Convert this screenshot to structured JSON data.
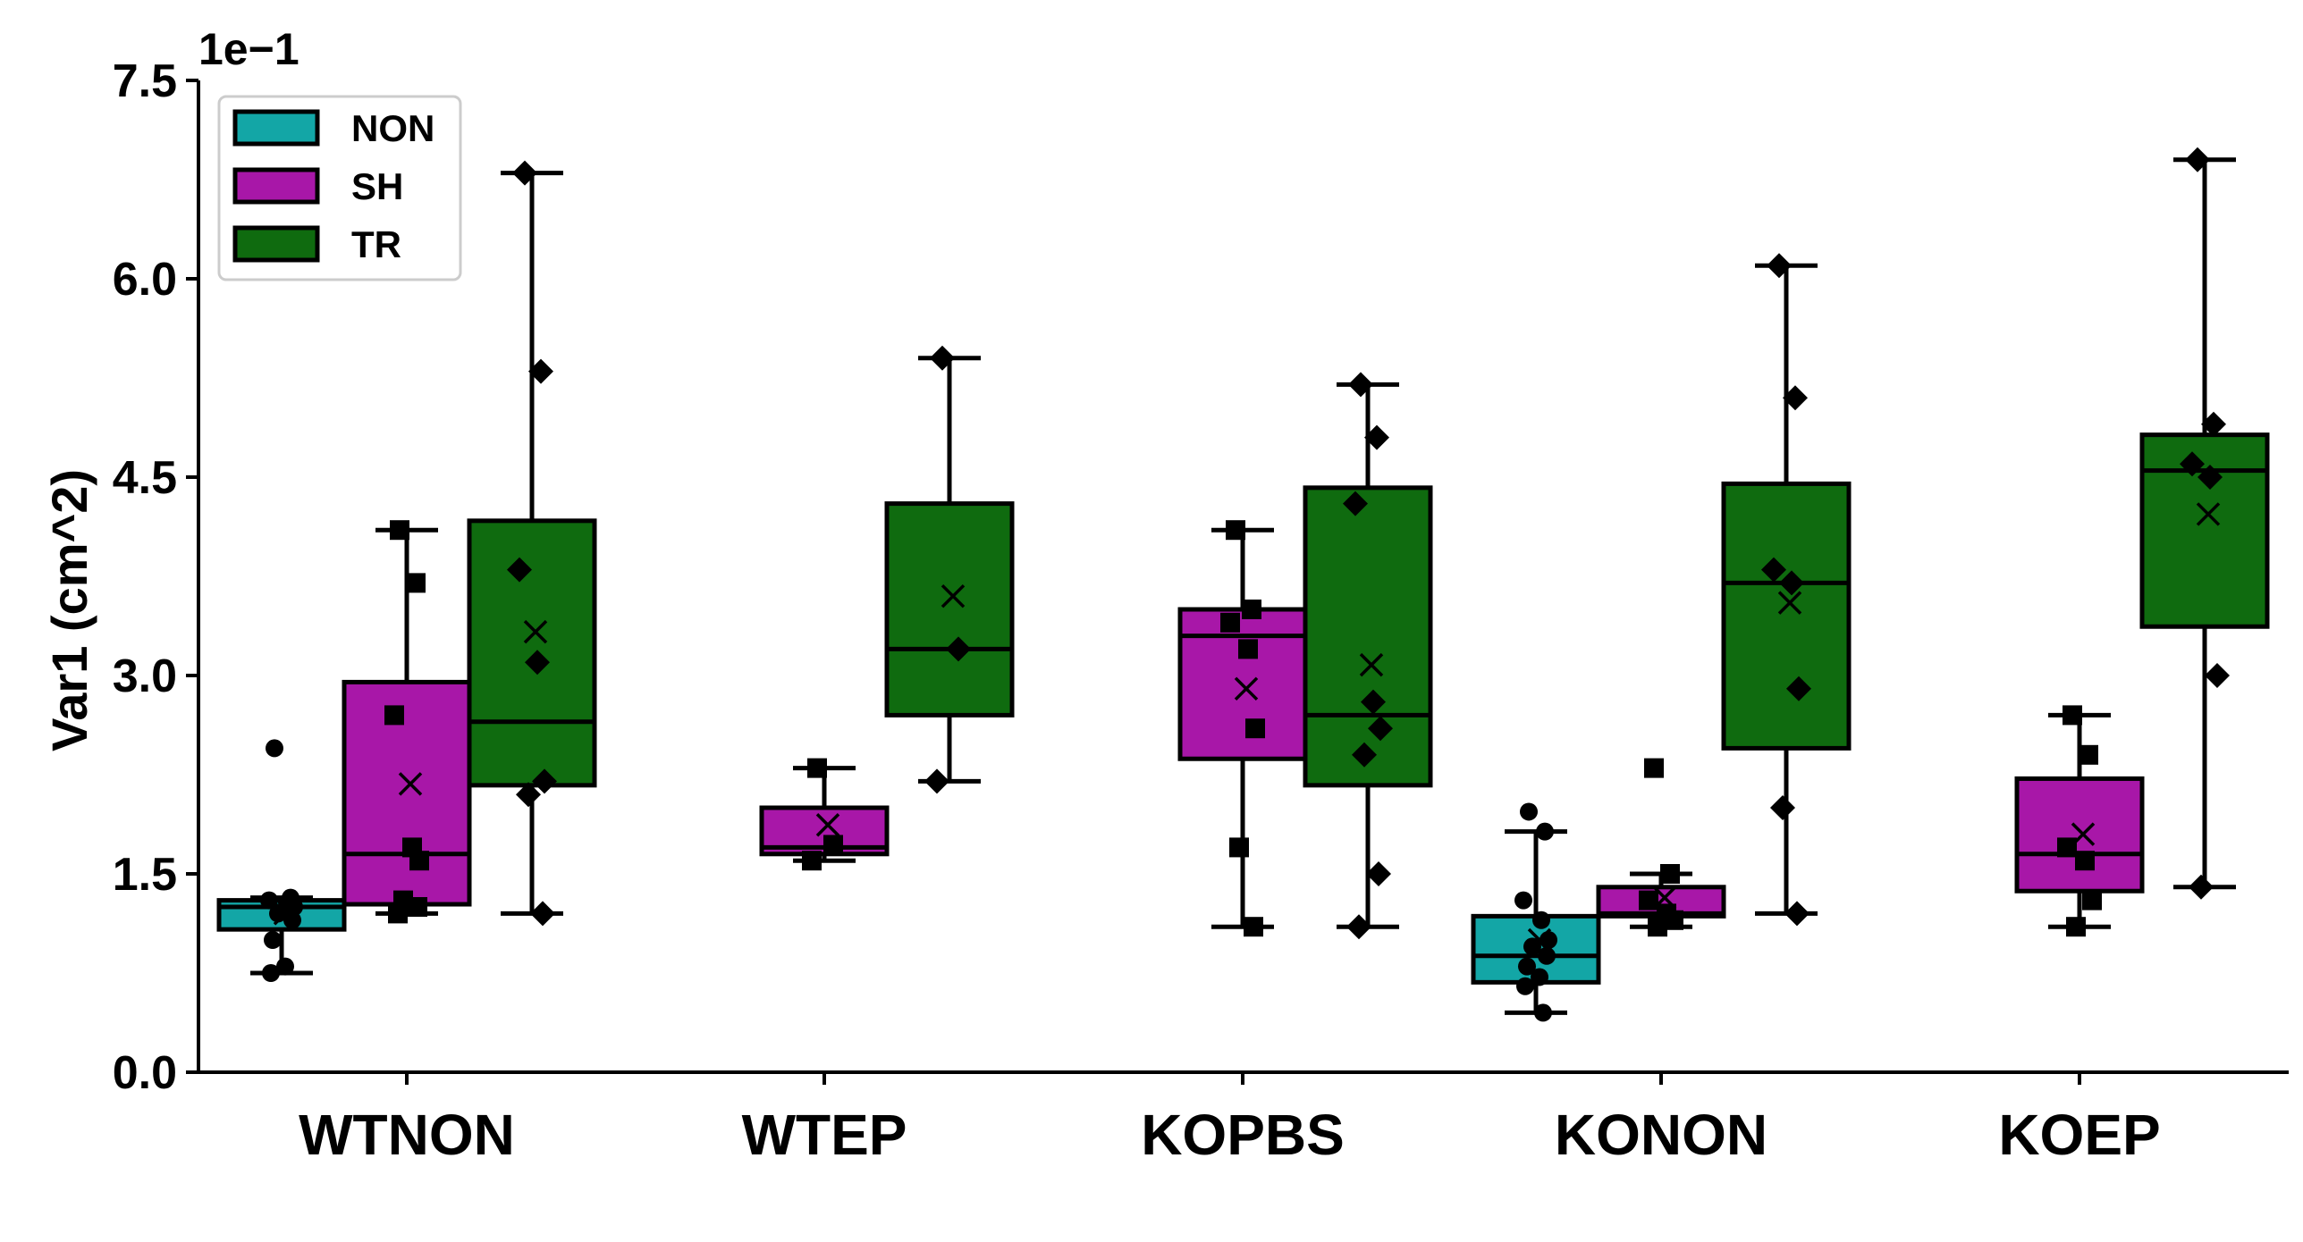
{
  "chart_data": {
    "type": "box",
    "title": "",
    "xlabel": "",
    "ylabel": "Var1 (cm^2)",
    "y_scale_label": "1e−1",
    "ylim": [
      0,
      7.5
    ],
    "yticks": [
      0.0,
      1.5,
      3.0,
      4.5,
      6.0,
      7.5
    ],
    "ytick_labels": [
      "0.0",
      "1.5",
      "3.0",
      "4.5",
      "6.0",
      "7.5"
    ],
    "categories": [
      "WTNON",
      "WTEP",
      "KOPBS",
      "KONON",
      "KOEP"
    ],
    "legend_position": "top-left",
    "grid": false,
    "series": [
      {
        "name": "NON",
        "color": "#13a6a6",
        "marker": "circle",
        "boxes": [
          {
            "category": "WTNON",
            "whisker_low": 0.75,
            "q1": 1.08,
            "median": 1.25,
            "q3": 1.3,
            "whisker_high": 1.32,
            "mean": 1.2,
            "points": [
              2.45,
              1.32,
              1.3,
              1.28,
              1.25,
              1.2,
              1.15,
              1.0,
              0.8,
              0.75
            ]
          },
          {
            "category": "KONON",
            "whisker_low": 0.45,
            "q1": 0.68,
            "median": 0.88,
            "q3": 1.18,
            "whisker_high": 1.82,
            "mean": 1.0,
            "points": [
              1.97,
              1.82,
              1.3,
              1.15,
              1.0,
              0.95,
              0.88,
              0.8,
              0.72,
              0.65,
              0.45
            ]
          }
        ]
      },
      {
        "name": "SH",
        "color": "#a817a8",
        "marker": "square",
        "boxes": [
          {
            "category": "WTNON",
            "whisker_low": 1.2,
            "q1": 1.27,
            "median": 1.65,
            "q3": 2.95,
            "whisker_high": 4.1,
            "mean": 2.18,
            "points": [
              4.1,
              3.7,
              2.7,
              1.7,
              1.6,
              1.3,
              1.25,
              1.2
            ]
          },
          {
            "category": "WTEP",
            "whisker_low": 1.6,
            "q1": 1.65,
            "median": 1.7,
            "q3": 2.0,
            "whisker_high": 2.3,
            "mean": 1.87,
            "points": [
              2.3,
              1.72,
              1.6
            ]
          },
          {
            "category": "KOPBS",
            "whisker_low": 1.1,
            "q1": 2.37,
            "median": 3.3,
            "q3": 3.5,
            "whisker_high": 4.1,
            "mean": 2.9,
            "points": [
              4.1,
              3.5,
              3.4,
              3.2,
              2.6,
              1.7,
              1.1
            ]
          },
          {
            "category": "KONON",
            "whisker_low": 1.1,
            "q1": 1.18,
            "median": 1.2,
            "q3": 1.4,
            "whisker_high": 1.5,
            "mean": 1.32,
            "points": [
              2.3,
              1.5,
              1.3,
              1.2,
              1.15,
              1.1
            ]
          },
          {
            "category": "KOEP",
            "whisker_low": 1.1,
            "q1": 1.37,
            "median": 1.65,
            "q3": 2.22,
            "whisker_high": 2.7,
            "mean": 1.8,
            "points": [
              2.7,
              2.4,
              1.7,
              1.6,
              1.3,
              1.1
            ]
          }
        ]
      },
      {
        "name": "TR",
        "color": "#0f6b0f",
        "marker": "diamond",
        "boxes": [
          {
            "category": "WTNON",
            "whisker_low": 1.2,
            "q1": 2.17,
            "median": 2.65,
            "q3": 4.17,
            "whisker_high": 6.8,
            "mean": 3.33,
            "points": [
              6.8,
              5.3,
              3.8,
              3.1,
              2.2,
              2.1,
              1.2
            ]
          },
          {
            "category": "WTEP",
            "whisker_low": 2.2,
            "q1": 2.7,
            "median": 3.2,
            "q3": 4.3,
            "whisker_high": 5.4,
            "mean": 3.6,
            "points": [
              5.4,
              3.2,
              2.2
            ]
          },
          {
            "category": "KOPBS",
            "whisker_low": 1.1,
            "q1": 2.17,
            "median": 2.7,
            "q3": 4.42,
            "whisker_high": 5.2,
            "mean": 3.08,
            "points": [
              5.2,
              4.8,
              4.3,
              2.8,
              2.6,
              2.4,
              1.5,
              1.1
            ]
          },
          {
            "category": "KONON",
            "whisker_low": 1.2,
            "q1": 2.45,
            "median": 3.7,
            "q3": 4.45,
            "whisker_high": 6.1,
            "mean": 3.55,
            "points": [
              6.1,
              5.1,
              3.8,
              3.7,
              2.9,
              2.0,
              1.2
            ]
          },
          {
            "category": "KOEP",
            "whisker_low": 1.4,
            "q1": 3.37,
            "median": 4.55,
            "q3": 4.82,
            "whisker_high": 6.9,
            "mean": 4.22,
            "points": [
              6.9,
              4.9,
              4.6,
              4.5,
              3.0,
              1.4
            ]
          }
        ]
      }
    ]
  }
}
